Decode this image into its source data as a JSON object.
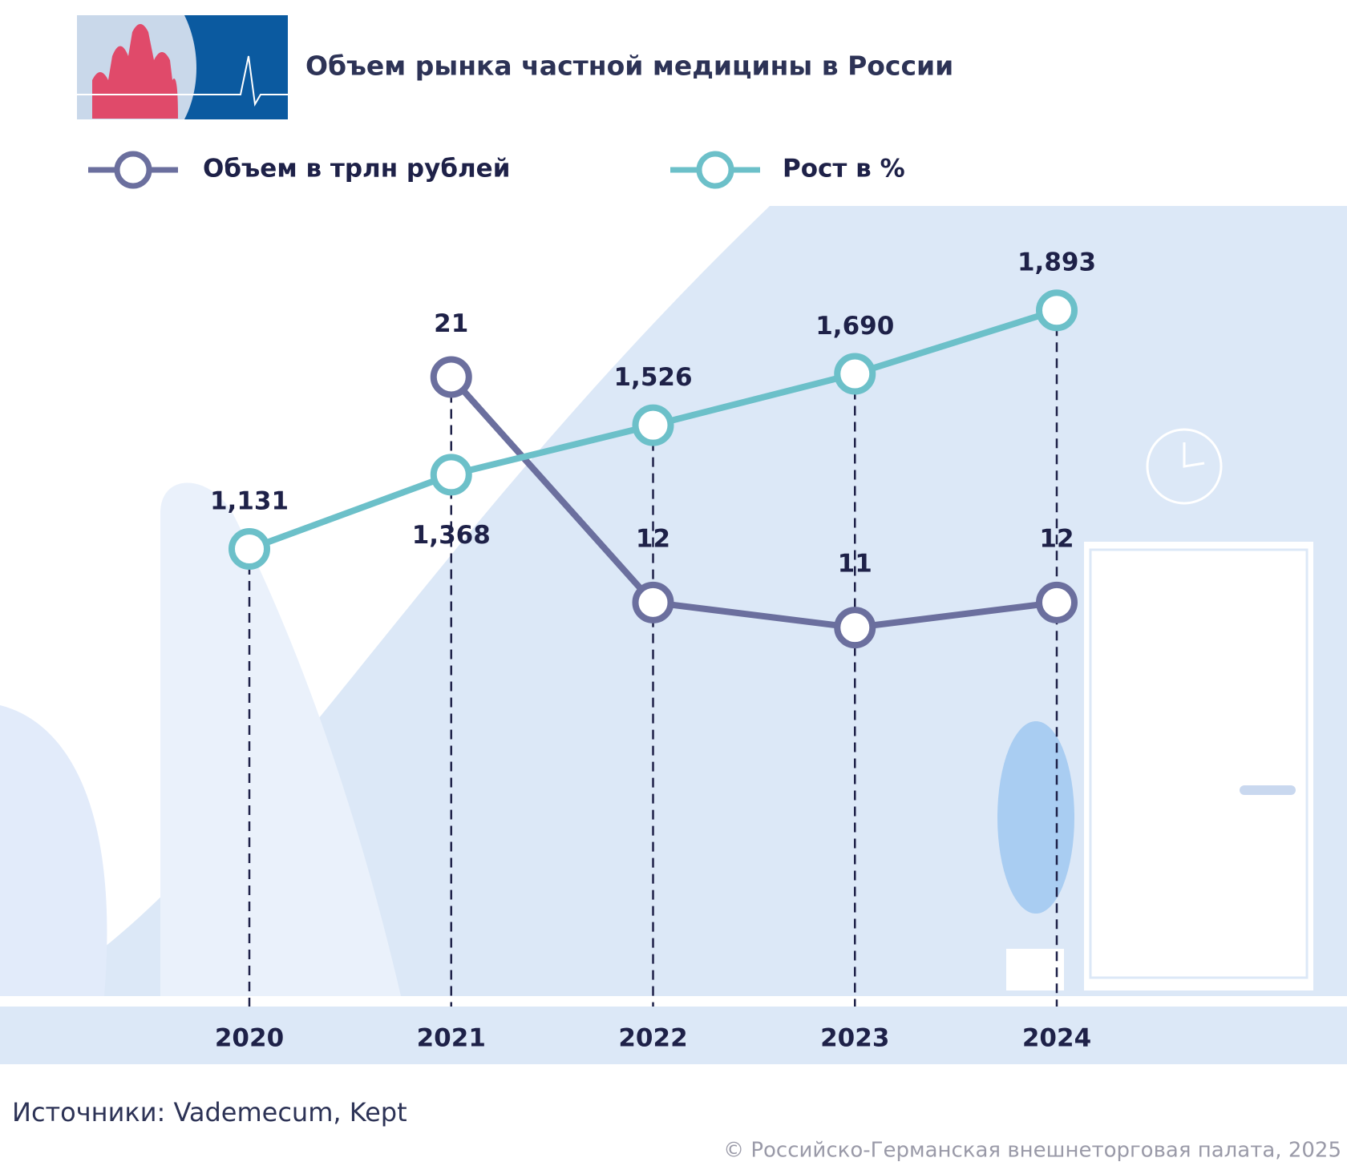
{
  "chart_data": {
    "type": "line",
    "title": "Объем рынка частной медицины в России",
    "categories": [
      "2020",
      "2021",
      "2022",
      "2023",
      "2024"
    ],
    "series": [
      {
        "name": "Объем в трлн рублей",
        "color": "#6b6f9e",
        "values": [
          null,
          21,
          12,
          11,
          12
        ],
        "axis": "y2"
      },
      {
        "name": "Рост в %",
        "color": "#6cc0c9",
        "values": [
          1.131,
          1.368,
          1.526,
          1.69,
          1.893
        ],
        "value_labels": [
          "1,131",
          "1,368",
          "1,526",
          "1,690",
          "1,893"
        ]
      }
    ],
    "ylim": [
      0,
      2.5
    ],
    "y2lim": [
      0,
      31.25
    ]
  },
  "source": "Источники: Vademecum, Kept",
  "copyright": "© Российско-Германская внешнеторговая палата, 2025"
}
